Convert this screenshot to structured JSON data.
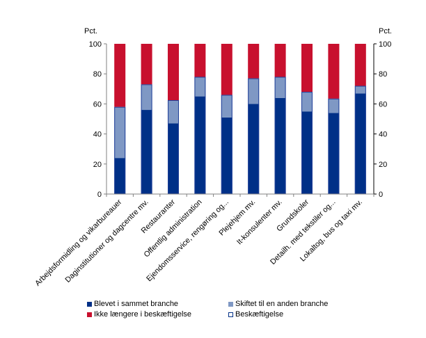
{
  "chart_data": {
    "type": "bar",
    "stacked": true,
    "title": "",
    "ylabel_left": "Pct.",
    "ylabel_right": "Pct.",
    "ylim": [
      0,
      100
    ],
    "yticks": [
      0,
      20,
      40,
      60,
      80,
      100
    ],
    "grid": false,
    "legend_position": "bottom",
    "categories": [
      "Arbejdsformidling og vikarbureauer",
      "Daginstitutioner og dagcentre mv.",
      "Restauranter",
      "Offentlig administration",
      "Ejendomsservice, rengøring og...",
      "Plejehjem mv.",
      "It-konsulenter mv.",
      "Grundskoler",
      "Detailh. med tekstiler og...",
      "Lokaltog, bus og taxi mv."
    ],
    "series": [
      {
        "name": "Blevet i sammet branche",
        "color": "#003087",
        "values": [
          24,
          56,
          47,
          65,
          51,
          60,
          64,
          55,
          54,
          67
        ]
      },
      {
        "name": "Skiftet til en anden branche",
        "color": "#7f98c4",
        "values": [
          34,
          17,
          15.5,
          13,
          15,
          17,
          14,
          13,
          9.5,
          5
        ]
      },
      {
        "name": "Ikke længere i beskæftigelse",
        "color": "#c8102e",
        "values": [
          42,
          27,
          37.5,
          22,
          34,
          23,
          22,
          32,
          36.5,
          28
        ]
      }
    ],
    "legend": [
      {
        "label": "Blevet i sammet branche",
        "color": "#003087",
        "style": "filled"
      },
      {
        "label": "Skiftet til en anden branche",
        "color": "#7f98c4",
        "style": "filled"
      },
      {
        "label": "Ikke længere i beskæftigelse",
        "color": "#c8102e",
        "style": "filled"
      },
      {
        "label": "Beskæftigelse",
        "color": "#003087",
        "style": "outline"
      }
    ],
    "outline_series_label": "Beskæftigelse",
    "axis_color": "#808080"
  }
}
